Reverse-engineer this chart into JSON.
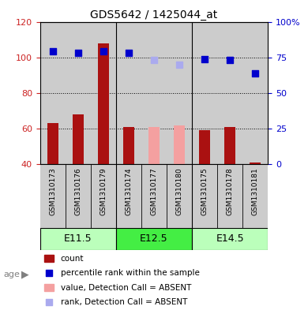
{
  "title": "GDS5642 / 1425044_at",
  "samples": [
    "GSM1310173",
    "GSM1310176",
    "GSM1310179",
    "GSM1310174",
    "GSM1310177",
    "GSM1310180",
    "GSM1310175",
    "GSM1310178",
    "GSM1310181"
  ],
  "age_groups": [
    {
      "label": "E11.5",
      "start": 0,
      "end": 3
    },
    {
      "label": "E12.5",
      "start": 3,
      "end": 6
    },
    {
      "label": "E14.5",
      "start": 6,
      "end": 9
    }
  ],
  "count_values": [
    63,
    68,
    108,
    61,
    null,
    null,
    59,
    61,
    41
  ],
  "count_absent": [
    null,
    null,
    null,
    null,
    61,
    62,
    null,
    null,
    null
  ],
  "percentile_values": [
    79,
    78,
    79,
    78,
    null,
    null,
    74,
    73,
    64
  ],
  "percentile_absent": [
    null,
    null,
    null,
    null,
    73,
    70,
    null,
    null,
    null
  ],
  "ylim_left": [
    40,
    120
  ],
  "ylim_right": [
    0,
    100
  ],
  "yticks_left": [
    40,
    60,
    80,
    100,
    120
  ],
  "ytick_labels_left": [
    "40",
    "60",
    "80",
    "100",
    "120"
  ],
  "yticks_right_vals": [
    0,
    25,
    50,
    75,
    100
  ],
  "ytick_labels_right": [
    "0",
    "25",
    "50",
    "75",
    "100%"
  ],
  "bar_color_present": "#aa1111",
  "bar_color_absent": "#f4a0a0",
  "dot_color_present": "#0000cc",
  "dot_color_absent": "#aaaaee",
  "age_row_color_e115": "#bbffbb",
  "age_row_color_e125": "#44ee44",
  "age_row_color_e145": "#bbffbb",
  "sample_bg_color": "#cccccc",
  "bar_width": 0.45,
  "dot_size": 40,
  "grid_dotted_values": [
    60,
    80,
    100
  ],
  "right_axis_label_color": "#0000cc",
  "left_axis_label_color": "#cc2222",
  "figsize": [
    3.9,
    3.93
  ],
  "dpi": 100
}
